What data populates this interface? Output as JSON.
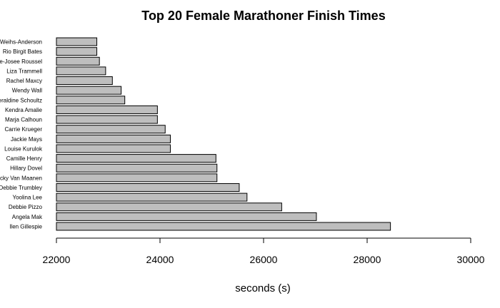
{
  "chart_data": {
    "type": "bar",
    "orientation": "horizontal",
    "title": "Top 20 Female Marathoner Finish Times",
    "xlabel": "seconds (s)",
    "ylabel": "",
    "xlim": [
      22000,
      30000
    ],
    "xticks": [
      "22000",
      "24000",
      "26000",
      "28000",
      "30000"
    ],
    "grid": false,
    "categories": [
      "Ilen Gillespie",
      "Angela Mak",
      "Debbie Pizzo",
      "Yoolina Lee",
      "Debbie Trumbley",
      "Becky Van Maanen",
      "Hillary Dovel",
      "Camille Henry",
      "Louise Kurulok",
      "Jackie Mays",
      "Carrie Krueger",
      "Marja Calhoun",
      "Kendra Amalie",
      "Geraldine Schoultz",
      "Wendy Wall",
      "Rachel Maxcy",
      "Liza Trammell",
      "Marie-Josee Roussel",
      "Rio Birgit Bates",
      "Jennie Weihs-Anderson"
    ],
    "values": [
      28450,
      27020,
      26350,
      25680,
      25530,
      25100,
      25100,
      25080,
      24200,
      24200,
      24100,
      23950,
      23950,
      23320,
      23250,
      23080,
      22950,
      22830,
      22780,
      22780
    ],
    "bar_color": "#bebebe",
    "bar_border_color": "#000000"
  }
}
